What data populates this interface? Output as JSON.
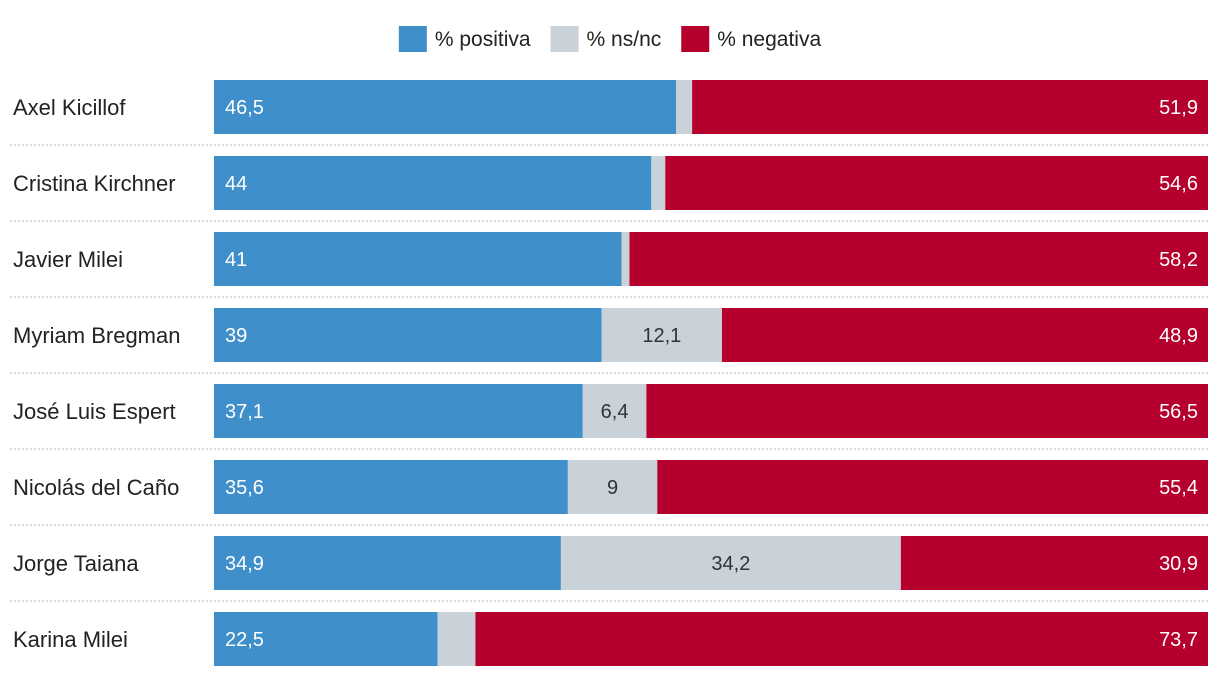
{
  "chart_data": {
    "type": "bar",
    "orientation": "horizontal",
    "stacked": true,
    "legend_position": "top-center",
    "categories": [
      "Axel Kicillof",
      "Cristina Kirchner",
      "Javier Milei",
      "Myriam Bregman",
      "José Luis Espert",
      "Nicolás del Caño",
      "Jorge Taiana",
      "Karina Milei"
    ],
    "series": [
      {
        "name": "% positiva",
        "color": "#3f8fcb",
        "label_color": "#ffffff",
        "values": [
          46.5,
          44,
          41,
          39,
          37.1,
          35.6,
          34.9,
          22.5
        ],
        "labels": [
          "46,5",
          "44",
          "41",
          "39",
          "37,1",
          "35,6",
          "34,9",
          "22,5"
        ]
      },
      {
        "name": "% ns/nc",
        "color": "#c9d2d8",
        "label_color": "#333333",
        "values": [
          1.6,
          1.4,
          0.8,
          12.1,
          6.4,
          9,
          34.2,
          3.8
        ],
        "labels": [
          "",
          "",
          "",
          "12,1",
          "6,4",
          "9",
          "34,2",
          ""
        ]
      },
      {
        "name": "% negativa",
        "color": "#b5002e",
        "label_color": "#ffffff",
        "values": [
          51.9,
          54.6,
          58.2,
          48.9,
          56.5,
          55.4,
          30.9,
          73.7
        ],
        "labels": [
          "51,9",
          "54,6",
          "58,2",
          "48,9",
          "56,5",
          "55,4",
          "30,9",
          "73,7"
        ]
      }
    ],
    "xlim": [
      0,
      100
    ],
    "grid": false,
    "row_separator_color": "#cfcfcf"
  }
}
